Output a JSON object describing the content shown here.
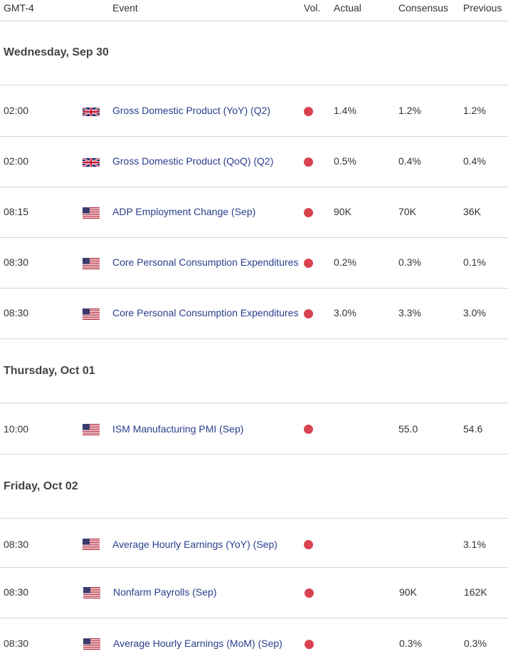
{
  "header": {
    "timezone": "GMT-4",
    "event": "Event",
    "vol": "Vol.",
    "actual": "Actual",
    "consensus": "Consensus",
    "previous": "Previous"
  },
  "days": [
    {
      "label": "Wednesday, Sep 30",
      "events": [
        {
          "time": "02:00",
          "country": "uk-flag-icon",
          "event": "Gross Domestic Product (YoY) (Q2)",
          "vol": "high",
          "actual": "1.4%",
          "consensus": "1.2%",
          "previous": "1.2%"
        },
        {
          "time": "02:00",
          "country": "uk-flag-icon",
          "event": "Gross Domestic Product (QoQ) (Q2)",
          "vol": "high",
          "actual": "0.5%",
          "consensus": "0.4%",
          "previous": "0.4%"
        },
        {
          "time": "08:15",
          "country": "us-flag-icon",
          "event": "ADP Employment Change (Sep)",
          "vol": "high",
          "actual": "90K",
          "consensus": "70K",
          "previous": "36K"
        },
        {
          "time": "08:30",
          "country": "us-flag-icon",
          "event": "Core Personal Consumption Expenditures",
          "vol": "high",
          "actual": "0.2%",
          "consensus": "0.3%",
          "previous": "0.1%"
        },
        {
          "time": "08:30",
          "country": "us-flag-icon",
          "event": "Core Personal Consumption Expenditures",
          "vol": "high",
          "actual": "3.0%",
          "consensus": "3.3%",
          "previous": "3.0%"
        }
      ]
    },
    {
      "label": "Thursday, Oct 01",
      "events": [
        {
          "time": "10:00",
          "country": "us-flag-icon",
          "event": "ISM Manufacturing PMI (Sep)",
          "vol": "high",
          "actual": "",
          "consensus": "55.0",
          "previous": "54.6"
        }
      ]
    },
    {
      "label": "Friday, Oct 02",
      "events": [
        {
          "time": "08:30",
          "country": "us-flag-icon",
          "event": "Average Hourly Earnings (YoY) (Sep)",
          "vol": "high",
          "actual": "",
          "consensus": "",
          "previous": "3.1%"
        },
        {
          "time": "08:30",
          "country": "us-flag-icon",
          "event": "Nonfarm Payrolls (Sep)",
          "vol": "high",
          "actual": "",
          "consensus": "90K",
          "previous": "162K"
        },
        {
          "time": "08:30",
          "country": "us-flag-icon",
          "event": "Average Hourly Earnings (MoM) (Sep)",
          "vol": "high",
          "actual": "",
          "consensus": "0.3%",
          "previous": "0.3%"
        }
      ]
    }
  ],
  "colors": {
    "high_vol_dot": "#d9434f",
    "event_link": "#2a3e8c",
    "divider": "#d6d6d6"
  }
}
